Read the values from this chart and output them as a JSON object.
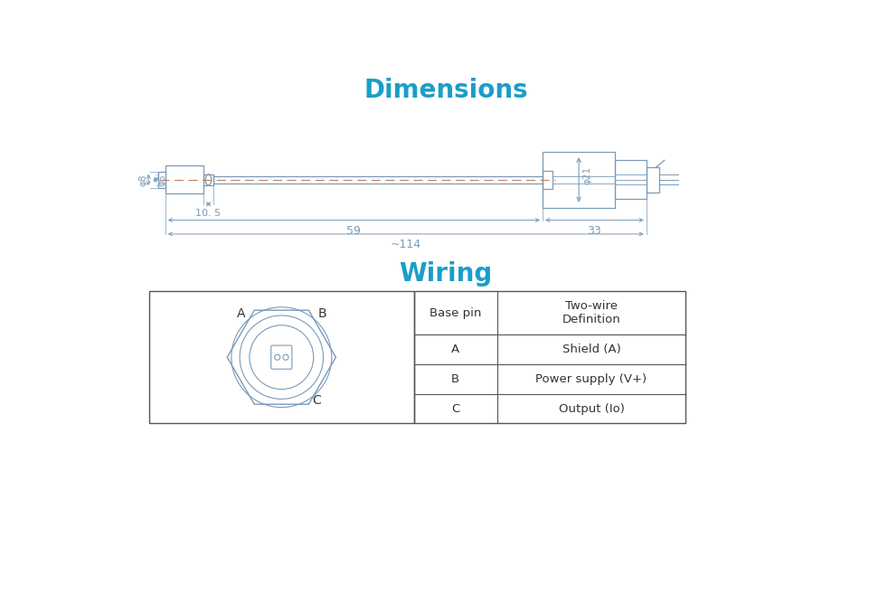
{
  "title_dimensions": "Dimensions",
  "title_wiring": "Wiring",
  "title_color": "#1a9ec8",
  "title_fontsize": 20,
  "bg_color": "#ffffff",
  "line_color": "#7a9ab8",
  "dim_color": "#7a9ab8",
  "text_color": "#333333",
  "table_col1_header": "Base pin",
  "table_header_row1": "Two-wire",
  "table_header_row2": "Definition",
  "table_rows": [
    [
      "A",
      "Shield (A)"
    ],
    [
      "B",
      "Power supply (V+)"
    ],
    [
      "C",
      "Output (Io)"
    ]
  ]
}
